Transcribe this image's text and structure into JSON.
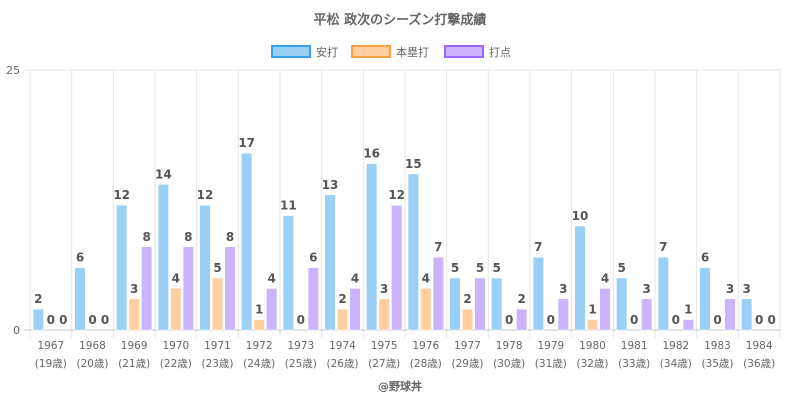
{
  "chart_data": {
    "type": "bar",
    "title": "平松 政次のシーズン打撃成績",
    "xlabel": "",
    "ylabel": "",
    "ylim": [
      0,
      25
    ],
    "yticks": [
      "0",
      "25"
    ],
    "grid": true,
    "legend_position": "top",
    "credit": "@野球丼",
    "categories": [
      [
        "1967",
        "(19歳)"
      ],
      [
        "1968",
        "(20歳)"
      ],
      [
        "1969",
        "(21歳)"
      ],
      [
        "1970",
        "(22歳)"
      ],
      [
        "1971",
        "(23歳)"
      ],
      [
        "1972",
        "(24歳)"
      ],
      [
        "1973",
        "(25歳)"
      ],
      [
        "1974",
        "(26歳)"
      ],
      [
        "1975",
        "(27歳)"
      ],
      [
        "1976",
        "(28歳)"
      ],
      [
        "1977",
        "(29歳)"
      ],
      [
        "1978",
        "(30歳)"
      ],
      [
        "1979",
        "(31歳)"
      ],
      [
        "1980",
        "(32歳)"
      ],
      [
        "1981",
        "(33歳)"
      ],
      [
        "1982",
        "(34歳)"
      ],
      [
        "1983",
        "(35歳)"
      ],
      [
        "1984",
        "(36歳)"
      ]
    ],
    "series": [
      {
        "name": "安打",
        "fill": "#9ad0f5",
        "stroke": "#36a2eb",
        "values": [
          2,
          6,
          12,
          14,
          12,
          17,
          11,
          13,
          16,
          15,
          5,
          5,
          7,
          10,
          5,
          7,
          6,
          3
        ]
      },
      {
        "name": "本塁打",
        "fill": "#ffcf9f",
        "stroke": "#ff9f40",
        "values": [
          0,
          0,
          3,
          4,
          5,
          1,
          0,
          2,
          3,
          4,
          2,
          0,
          0,
          1,
          0,
          0,
          0,
          0
        ]
      },
      {
        "name": "打点",
        "fill": "#cbb3fd",
        "stroke": "#9966ff",
        "values": [
          0,
          0,
          8,
          8,
          8,
          4,
          6,
          4,
          12,
          7,
          5,
          2,
          3,
          4,
          3,
          1,
          3,
          0
        ]
      }
    ]
  }
}
